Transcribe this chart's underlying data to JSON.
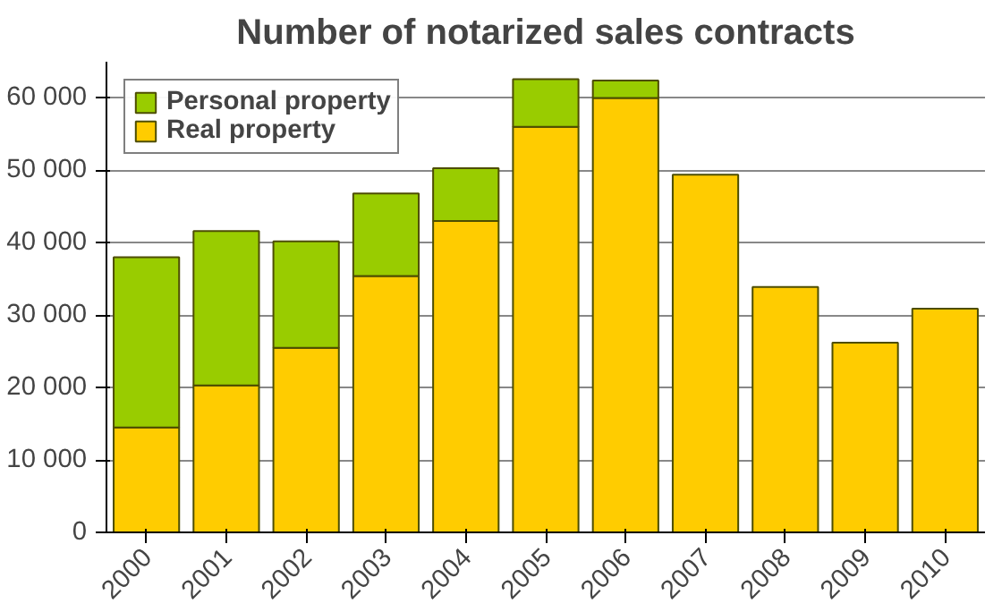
{
  "chart_data": {
    "type": "bar",
    "title": "Number of notarized sales contracts",
    "stacked": true,
    "categories": [
      "2000",
      "2001",
      "2002",
      "2003",
      "2004",
      "2005",
      "2006",
      "2007",
      "2008",
      "2009",
      "2010"
    ],
    "series": [
      {
        "name": "Real property",
        "color": "#ffcc00",
        "values": [
          14500,
          20300,
          25500,
          35400,
          43000,
          56000,
          60000,
          49400,
          33900,
          26200,
          30900
        ]
      },
      {
        "name": "Personal property",
        "color": "#99cc00",
        "values": [
          23500,
          21300,
          14700,
          11400,
          7300,
          6600,
          2400,
          null,
          null,
          null,
          null
        ]
      }
    ],
    "ylim": [
      0,
      65000
    ],
    "yticks": [
      {
        "value": 0,
        "label": "0"
      },
      {
        "value": 10000,
        "label": "10 000"
      },
      {
        "value": 20000,
        "label": "20 000"
      },
      {
        "value": 30000,
        "label": "30 000"
      },
      {
        "value": 40000,
        "label": "40 000"
      },
      {
        "value": 50000,
        "label": "50 000"
      },
      {
        "value": 60000,
        "label": "60 000"
      }
    ],
    "grid": "y",
    "legend": "top left"
  }
}
